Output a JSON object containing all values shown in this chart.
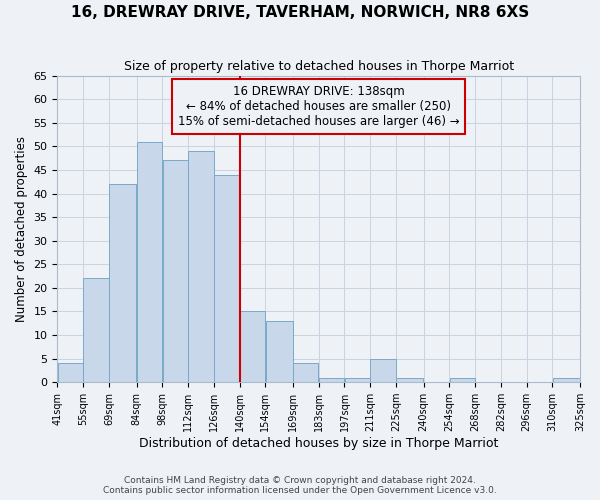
{
  "title": "16, DREWRAY DRIVE, TAVERHAM, NORWICH, NR8 6XS",
  "subtitle": "Size of property relative to detached houses in Thorpe Marriot",
  "xlabel": "Distribution of detached houses by size in Thorpe Marriot",
  "ylabel": "Number of detached properties",
  "bar_color": "#c8d8ea",
  "bar_edge_color": "#7aaac8",
  "grid_color": "#c8d4e0",
  "annotation_line_color": "#cc0000",
  "annotation_box_color": "#cc0000",
  "annotation_text": "16 DREWRAY DRIVE: 138sqm\n← 84% of detached houses are smaller (250)\n15% of semi-detached houses are larger (46) →",
  "bins": [
    41,
    55,
    69,
    84,
    98,
    112,
    126,
    140,
    154,
    169,
    183,
    197,
    211,
    225,
    240,
    254,
    268,
    282,
    296,
    310,
    325
  ],
  "bin_labels": [
    "41sqm",
    "55sqm",
    "69sqm",
    "84sqm",
    "98sqm",
    "112sqm",
    "126sqm",
    "140sqm",
    "154sqm",
    "169sqm",
    "183sqm",
    "197sqm",
    "211sqm",
    "225sqm",
    "240sqm",
    "254sqm",
    "268sqm",
    "282sqm",
    "296sqm",
    "310sqm",
    "325sqm"
  ],
  "bar_heights": [
    4,
    22,
    42,
    51,
    47,
    49,
    44,
    15,
    13,
    4,
    1,
    1,
    5,
    1,
    0,
    1,
    0,
    0,
    0,
    1
  ],
  "ylim": [
    0,
    65
  ],
  "yticks": [
    0,
    5,
    10,
    15,
    20,
    25,
    30,
    35,
    40,
    45,
    50,
    55,
    60,
    65
  ],
  "footer_line1": "Contains HM Land Registry data © Crown copyright and database right 2024.",
  "footer_line2": "Contains public sector information licensed under the Open Government Licence v3.0.",
  "property_line_x": 140,
  "fig_bg": "#eef2f7"
}
